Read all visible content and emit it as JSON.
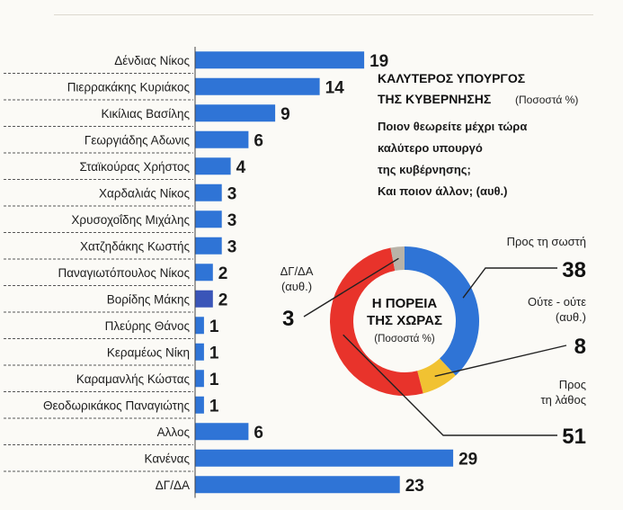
{
  "chart_data": [
    {
      "type": "bar",
      "orientation": "horizontal",
      "categories": [
        "Δένδιας Νίκος",
        "Πιερρακάκης Κυριάκος",
        "Κικίλιας Βασίλης",
        "Γεωργιάδης Αδωνις",
        "Σταϊκούρας Χρήστος",
        "Χαρδαλιάς Νίκος",
        "Χρυσοχοΐδης Μιχάλης",
        "Χατζηδάκης Κωστής",
        "Παναγιωτόπουλος Νίκος",
        "Βορίδης Μάκης",
        "Πλεύρης Θάνος",
        "Κεραμέως Νίκη",
        "Καραμανλής Κώστας",
        "Θεοδωρικάκος Παναγιώτης",
        "Αλλος",
        "Κανένας",
        "ΔΓ/ΔΑ"
      ],
      "values": [
        19,
        14,
        9,
        6,
        4,
        3,
        3,
        3,
        2,
        2,
        1,
        1,
        1,
        1,
        6,
        29,
        23
      ],
      "title": "ΚΑΛΥΤΕΡΟΣ ΥΠΟΥΡΓΟΣ ΤΗΣ ΚΥΒΕΡΝΗΣΗΣ",
      "subtitle": "(Ποσοστά %)",
      "question": [
        "Ποιον θεωρείτε μέχρι τώρα",
        "καλύτερο υπουργό",
        "της κυβέρνησης;",
        "Και ποιον άλλον; (αυθ.)"
      ],
      "bar_color": "#2f74d6",
      "bar_color_highlight": "#3a55b8"
    },
    {
      "type": "pie",
      "donut": true,
      "title": [
        "Η ΠΟΡΕΙΑ",
        "ΤΗΣ ΧΩΡΑΣ"
      ],
      "subtitle": "(Ποσοστά %)",
      "slices": [
        {
          "label": [
            "Προς τη σωστή"
          ],
          "value": 38,
          "color": "#2f74d6"
        },
        {
          "label": [
            "Ούτε - ούτε",
            "(αυθ.)"
          ],
          "value": 8,
          "color": "#f1c232"
        },
        {
          "label": [
            "Προς",
            "τη λάθος"
          ],
          "value": 51,
          "color": "#e8332b"
        },
        {
          "label": [
            "ΔΓ/ΔΑ",
            "(αυθ.)"
          ],
          "value": 3,
          "color": "#b9b3a8"
        }
      ]
    }
  ]
}
